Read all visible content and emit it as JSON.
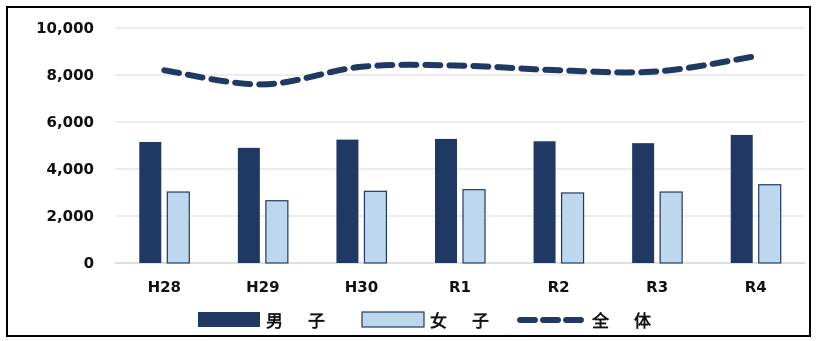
{
  "chart_data": {
    "type": "bar",
    "categories": [
      "H28",
      "H29",
      "H30",
      "R1",
      "R2",
      "R3",
      "R4"
    ],
    "series": [
      {
        "name": "男　子",
        "type": "bar",
        "values": [
          5150,
          4900,
          5250,
          5280,
          5180,
          5100,
          5450
        ],
        "color": "#1f3864"
      },
      {
        "name": "女　子",
        "type": "bar",
        "values": [
          3020,
          2650,
          3050,
          3120,
          2980,
          3020,
          3330
        ],
        "color": "#bdd7ee"
      },
      {
        "name": "全　体",
        "type": "line",
        "style": "dashed",
        "values": [
          8200,
          7600,
          8350,
          8400,
          8200,
          8150,
          8800
        ],
        "color": "#1f3864"
      }
    ],
    "yticks": [
      "0",
      "2,000",
      "4,000",
      "6,000",
      "8,000",
      "10,000"
    ],
    "ylim": [
      0,
      10000
    ],
    "grid": true,
    "legend_position": "bottom"
  }
}
